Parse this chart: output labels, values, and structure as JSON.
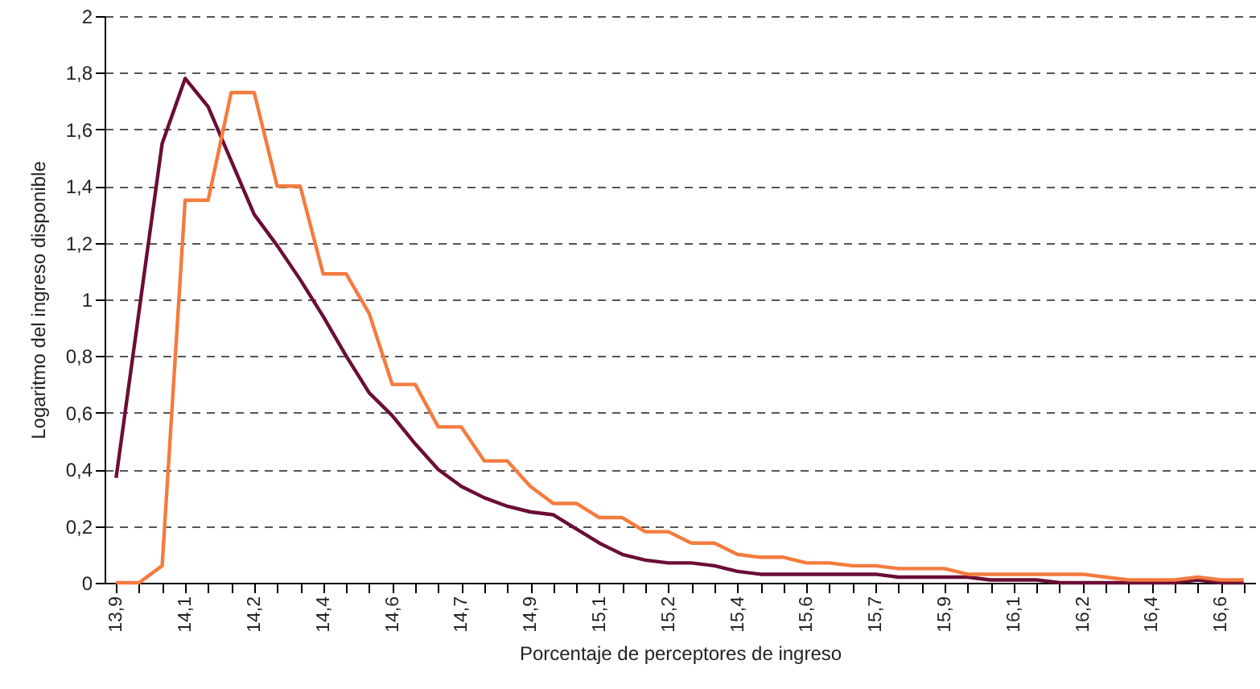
{
  "chart_data": {
    "type": "line",
    "xlabel": "Porcentaje de perceptores de ingreso",
    "ylabel": "Logaritmo del ingreso disponible",
    "categories": [
      "13,9",
      null,
      null,
      "14,1",
      null,
      null,
      "14,2",
      null,
      null,
      "14,4",
      null,
      null,
      "14,6",
      null,
      null,
      "14,7",
      null,
      null,
      "14,9",
      null,
      null,
      "15,1",
      null,
      null,
      "15,2",
      null,
      null,
      "15,4",
      null,
      null,
      "15,6",
      null,
      null,
      "15,7",
      null,
      null,
      "15,9",
      null,
      null,
      "16,1",
      null,
      null,
      "16,2",
      null,
      null,
      "16,4",
      null,
      null,
      "16,6",
      null
    ],
    "series": [
      {
        "color": "#6b0d37",
        "values": [
          0.37,
          0.96,
          1.55,
          1.78,
          1.68,
          1.49,
          1.3,
          1.19,
          1.07,
          0.94,
          0.8,
          0.67,
          0.59,
          0.49,
          0.4,
          0.34,
          0.3,
          0.27,
          0.25,
          0.24,
          0.19,
          0.14,
          0.1,
          0.08,
          0.07,
          0.07,
          0.06,
          0.04,
          0.03,
          0.03,
          0.03,
          0.03,
          0.03,
          0.03,
          0.02,
          0.02,
          0.02,
          0.02,
          0.01,
          0.01,
          0.01,
          0,
          0,
          0,
          0,
          0,
          0,
          0.01,
          0,
          0
        ]
      },
      {
        "color": "#f47b3e",
        "values": [
          0,
          0,
          0.06,
          1.35,
          1.35,
          1.73,
          1.73,
          1.4,
          1.4,
          1.09,
          1.09,
          0.95,
          0.7,
          0.7,
          0.55,
          0.55,
          0.43,
          0.43,
          0.34,
          0.28,
          0.28,
          0.23,
          0.23,
          0.18,
          0.18,
          0.14,
          0.14,
          0.1,
          0.09,
          0.09,
          0.07,
          0.07,
          0.06,
          0.06,
          0.05,
          0.05,
          0.05,
          0.03,
          0.03,
          0.03,
          0.03,
          0.03,
          0.03,
          0.02,
          0.01,
          0.01,
          0.01,
          0.02,
          0.01,
          0.01
        ]
      }
    ],
    "ylim": [
      0,
      2
    ],
    "yticks": [
      0,
      {
        "value": 0.2,
        "label": "0,2"
      },
      {
        "value": 0.4,
        "label": "0,4"
      },
      {
        "value": 0.6,
        "label": "0,6"
      },
      {
        "value": 0.8,
        "label": "0,8"
      },
      1,
      {
        "value": 1.2,
        "label": "1,2"
      },
      {
        "value": 1.4,
        "label": "1,4"
      },
      {
        "value": 1.6,
        "label": "1,6"
      },
      {
        "value": 1.8,
        "label": "1,8"
      },
      2
    ],
    "grid": "y"
  }
}
